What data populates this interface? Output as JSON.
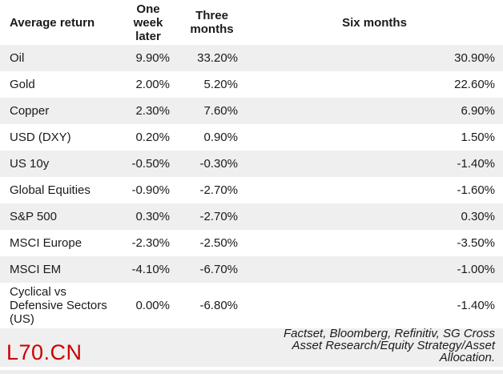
{
  "table": {
    "headers": {
      "col0": "Average return",
      "col1": "One\nweek\nlater",
      "col2": "Three\nmonths",
      "col3": "Six months"
    },
    "rows": [
      {
        "label": "Oil",
        "values": [
          "9.90%",
          "33.20%",
          "30.90%"
        ]
      },
      {
        "label": "Gold",
        "values": [
          "2.00%",
          "5.20%",
          "22.60%"
        ]
      },
      {
        "label": "Copper",
        "values": [
          "2.30%",
          "7.60%",
          "6.90%"
        ]
      },
      {
        "label": "USD (DXY)",
        "values": [
          "0.20%",
          "0.90%",
          "1.50%"
        ]
      },
      {
        "label": "US 10y",
        "values": [
          "-0.50%",
          "-0.30%",
          "-1.40%"
        ]
      },
      {
        "label": "Global Equities",
        "values": [
          "-0.90%",
          "-2.70%",
          "-1.60%"
        ]
      },
      {
        "label": "S&P 500",
        "values": [
          "0.30%",
          "-2.70%",
          "0.30%"
        ]
      },
      {
        "label": "MSCI Europe",
        "values": [
          "-2.30%",
          "-2.50%",
          "-3.50%"
        ]
      },
      {
        "label": "MSCI EM",
        "values": [
          "-4.10%",
          "-6.70%",
          "-1.00%"
        ]
      },
      {
        "label": "Cyclical vs Defensive Sectors (US)",
        "values": [
          "0.00%",
          "-6.80%",
          "-1.40%"
        ]
      }
    ]
  },
  "footer": {
    "watermark": "L70.CN",
    "source": "Factset, Bloomberg, Refinitiv, SG Cross\nAsset Research/Equity Strategy/Asset\nAllocation."
  },
  "colors": {
    "row_alt_background": "#efefef",
    "footer_background": "#efefef",
    "watermark_red": "#cc0000",
    "text": "#1a1a1a"
  },
  "chart_data": {
    "type": "table",
    "title": "Average return",
    "columns": [
      "Average return",
      "One week later",
      "Three months",
      "Six months"
    ],
    "rows": [
      [
        "Oil",
        "9.90%",
        "33.20%",
        "30.90%"
      ],
      [
        "Gold",
        "2.00%",
        "5.20%",
        "22.60%"
      ],
      [
        "Copper",
        "2.30%",
        "7.60%",
        "6.90%"
      ],
      [
        "USD (DXY)",
        "0.20%",
        "0.90%",
        "1.50%"
      ],
      [
        "US 10y",
        "-0.50%",
        "-0.30%",
        "-1.40%"
      ],
      [
        "Global Equities",
        "-0.90%",
        "-2.70%",
        "-1.60%"
      ],
      [
        "S&P 500",
        "0.30%",
        "-2.70%",
        "0.30%"
      ],
      [
        "MSCI Europe",
        "-2.30%",
        "-2.50%",
        "-3.50%"
      ],
      [
        "MSCI EM",
        "-4.10%",
        "-6.70%",
        "-1.00%"
      ],
      [
        "Cyclical vs Defensive Sectors (US)",
        "0.00%",
        "-6.80%",
        "-1.40%"
      ]
    ],
    "source": "Factset, Bloomberg, Refinitiv, SG Cross Asset Research/Equity Strategy/Asset Allocation.",
    "watermark": "L70.CN"
  }
}
